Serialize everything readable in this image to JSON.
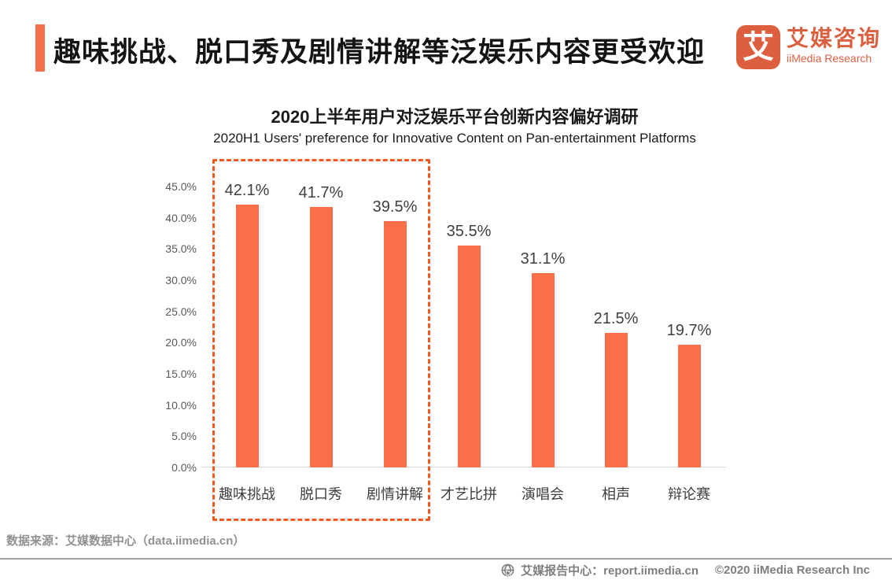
{
  "header": {
    "title": "趣味挑战、脱口秀及剧情讲解等泛娱乐内容更受欢迎",
    "logo": {
      "mark_glyph": "艾",
      "name_cn": "艾媒咨询",
      "name_en": "iiMedia Research",
      "brand_color": "#DC6040"
    }
  },
  "chart": {
    "title": "2020上半年用户对泛娱乐平台创新内容偏好调研",
    "subtitle": "2020H1 Users' preference for Innovative Content on Pan-entertainment Platforms"
  },
  "chart_data": {
    "type": "bar",
    "title": "2020上半年用户对泛娱乐平台创新内容偏好调研",
    "subtitle": "2020H1 Users' preference for Innovative Content on Pan-entertainment Platforms",
    "categories": [
      "趣味挑战",
      "脱口秀",
      "剧情讲解",
      "才艺比拼",
      "演唱会",
      "相声",
      "辩论赛"
    ],
    "values": [
      42.1,
      41.7,
      39.5,
      35.5,
      31.1,
      21.5,
      19.7
    ],
    "value_labels": [
      "42.1%",
      "41.7%",
      "39.5%",
      "35.5%",
      "31.1%",
      "21.5%",
      "19.7%"
    ],
    "yticks": [
      "0.0%",
      "5.0%",
      "10.0%",
      "15.0%",
      "20.0%",
      "25.0%",
      "30.0%",
      "35.0%",
      "40.0%",
      "45.0%"
    ],
    "ylim": [
      0,
      45
    ],
    "grid": false,
    "legend": "none",
    "bar_color": "#FC7049",
    "highlight": {
      "indices": [
        0,
        1,
        2
      ],
      "style": "dashed-box",
      "color": "#F5591F"
    }
  },
  "source": {
    "text": "数据来源：艾媒数据中心（data.iimedia.cn）"
  },
  "footer": {
    "icon": "globe-cursor-icon",
    "report_center": "艾媒报告中心：report.iimedia.cn",
    "copyright": "©2020  iiMedia Research  Inc"
  }
}
